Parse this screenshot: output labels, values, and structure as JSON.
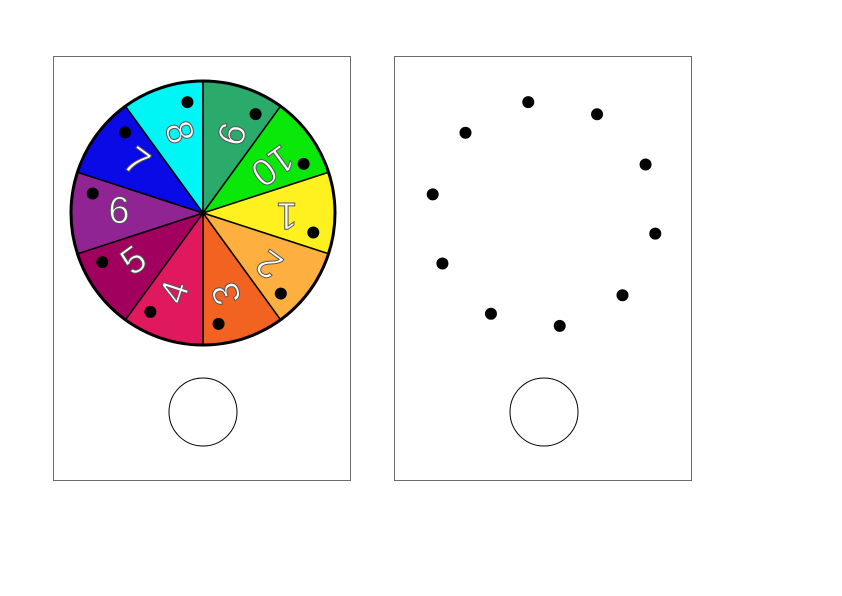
{
  "wheel": {
    "segments": [
      {
        "label": "1",
        "color": "#fff01f"
      },
      {
        "label": "2",
        "color": "#fdb03f"
      },
      {
        "label": "3",
        "color": "#f26322"
      },
      {
        "label": "4",
        "color": "#e0185e"
      },
      {
        "label": "5",
        "color": "#a1005e"
      },
      {
        "label": "6",
        "color": "#902492"
      },
      {
        "label": "7",
        "color": "#0a0ae6"
      },
      {
        "label": "8",
        "color": "#00f5f5"
      },
      {
        "label": "9",
        "color": "#2aaa6b"
      },
      {
        "label": "10",
        "color": "#0ae80a"
      }
    ]
  },
  "colors": {
    "wheel_outline": "#000000",
    "dot": "#000000",
    "card_border": "#6b6b6b"
  },
  "right_card": {
    "dot_count": 10
  }
}
